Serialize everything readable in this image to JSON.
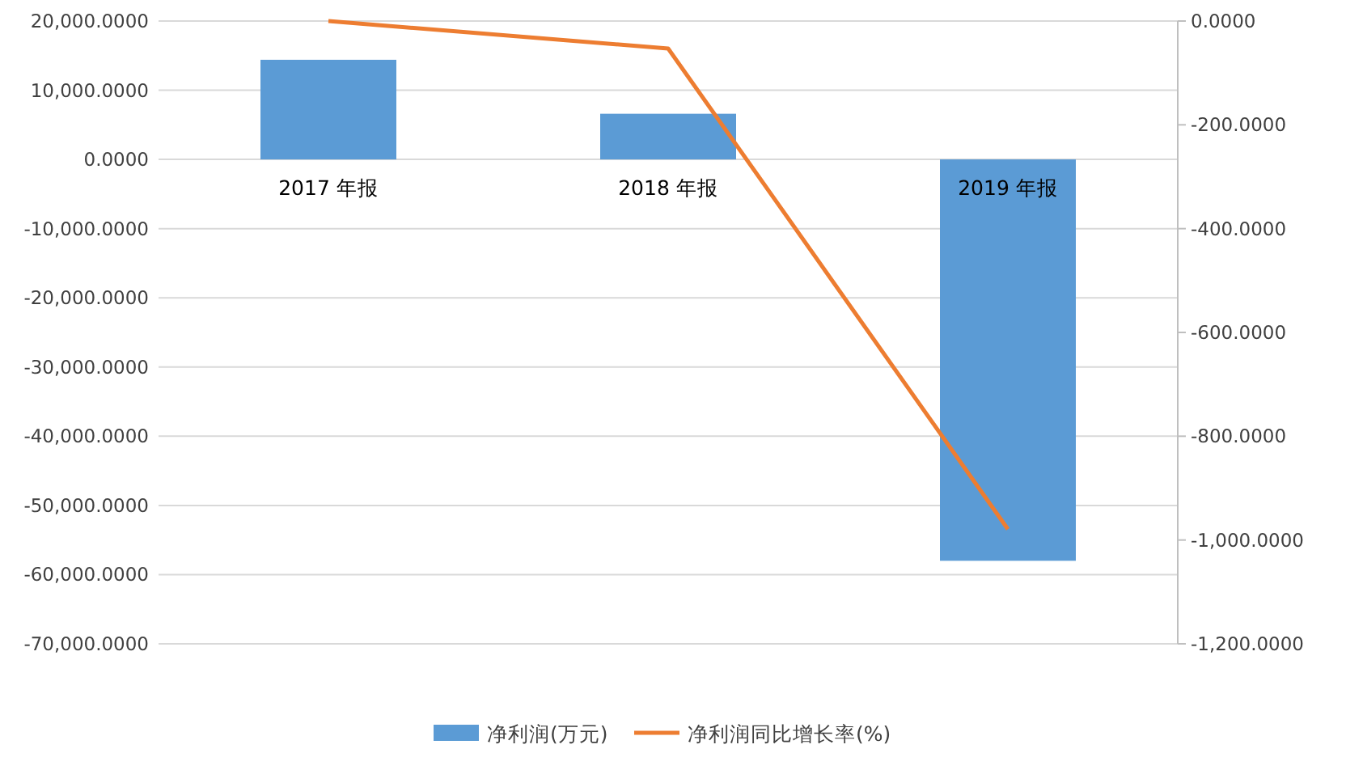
{
  "chart_data": {
    "type": "bar",
    "categories": [
      "2017 年报",
      "2018 年报",
      "2019 年报"
    ],
    "series": [
      {
        "name": "净利润(万元)",
        "color": "#5b9bd5",
        "values": [
          14400,
          6600,
          -58000
        ]
      },
      {
        "name": "净利润同比增长率(%)",
        "color": "#ed7d31",
        "type": "line",
        "axis": "y2",
        "values": [
          0,
          -53,
          -979
        ]
      }
    ],
    "ylim": [
      -70000,
      20000
    ],
    "yticks": [
      {
        "value": -70000,
        "label": "-70,000.0000"
      },
      {
        "value": -60000,
        "label": "-60,000.0000"
      },
      {
        "value": -50000,
        "label": "-50,000.0000"
      },
      {
        "value": -40000,
        "label": "-40,000.0000"
      },
      {
        "value": -30000,
        "label": "-30,000.0000"
      },
      {
        "value": -20000,
        "label": "-20,000.0000"
      },
      {
        "value": -10000,
        "label": "-10,000.0000"
      },
      {
        "value": 0,
        "label": "0.0000"
      },
      {
        "value": 10000,
        "label": "10,000.0000"
      },
      {
        "value": 20000,
        "label": "20,000.0000"
      }
    ],
    "y2lim": [
      -1200,
      0
    ],
    "y2ticks": [
      {
        "value": -1200,
        "label": "-1,200.0000"
      },
      {
        "value": -1000,
        "label": "-1,000.0000"
      },
      {
        "value": -800,
        "label": "-800.0000"
      },
      {
        "value": -600,
        "label": "-600.0000"
      },
      {
        "value": -400,
        "label": "-400.0000"
      },
      {
        "value": -200,
        "label": "-200.0000"
      },
      {
        "value": 0,
        "label": "0.0000"
      }
    ],
    "grid": "y",
    "legend": "bottom"
  }
}
